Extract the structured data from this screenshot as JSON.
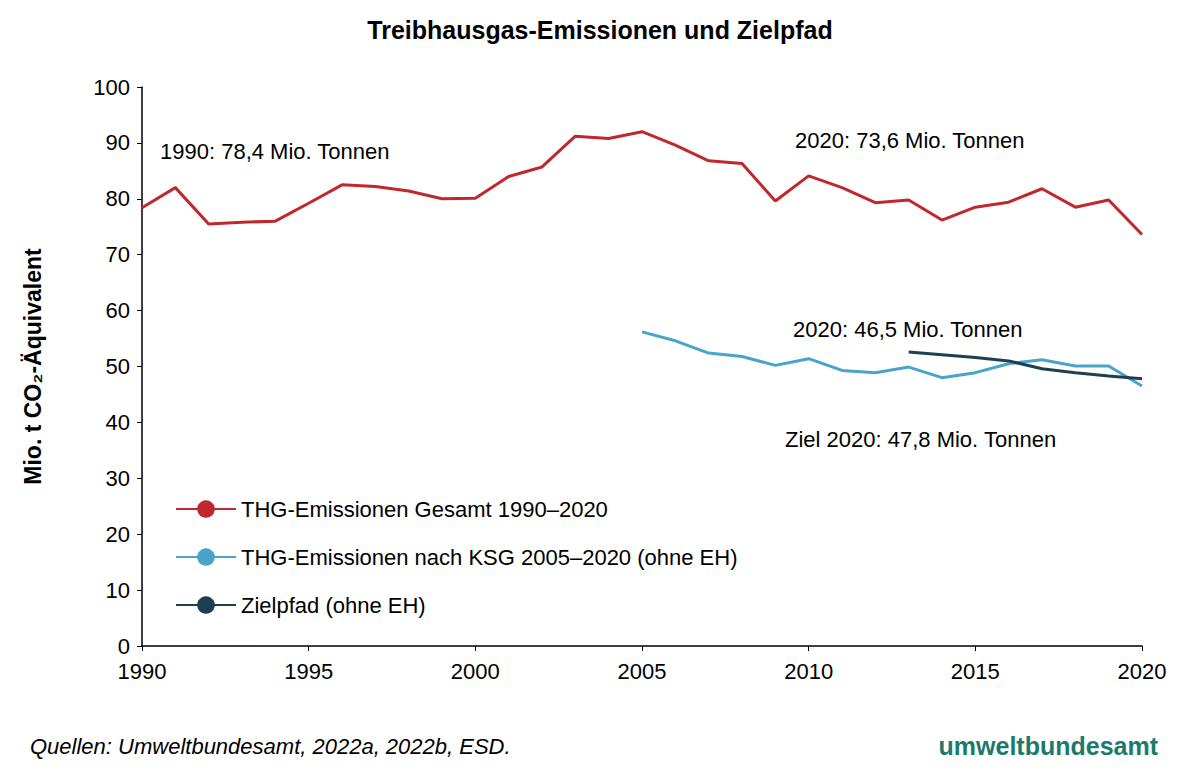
{
  "chart_data": {
    "type": "line",
    "title": "Treibhausgas-Emissionen und Zielpfad",
    "y_label": "Mio. t CO₂-Äquivalent",
    "x": [
      1990,
      1991,
      1992,
      1993,
      1994,
      1995,
      1996,
      1997,
      1998,
      1999,
      2000,
      2001,
      2002,
      2003,
      2004,
      2005,
      2006,
      2007,
      2008,
      2009,
      2010,
      2011,
      2012,
      2013,
      2014,
      2015,
      2016,
      2017,
      2018,
      2019,
      2020
    ],
    "series": [
      {
        "name": "THG-Emissionen Gesamt 1990–2020",
        "color": "#c0282d",
        "values": [
          78.4,
          82.0,
          75.5,
          75.8,
          76.0,
          79.2,
          82.5,
          82.2,
          81.4,
          80.0,
          80.1,
          84.0,
          85.7,
          91.2,
          90.8,
          92.0,
          89.6,
          86.8,
          86.3,
          79.6,
          84.1,
          82.0,
          79.3,
          79.8,
          76.2,
          78.5,
          79.4,
          81.8,
          78.5,
          79.8,
          73.6
        ]
      },
      {
        "name": "THG-Emissionen nach KSG 2005–2020 (ohne EH)",
        "color": "#4aa3c8",
        "values": [
          null,
          null,
          null,
          null,
          null,
          null,
          null,
          null,
          null,
          null,
          null,
          null,
          null,
          null,
          null,
          56.2,
          54.6,
          52.4,
          51.8,
          50.2,
          51.4,
          49.3,
          48.9,
          49.9,
          48.0,
          48.9,
          50.5,
          51.2,
          50.1,
          50.1,
          46.5
        ]
      },
      {
        "name": "Zielpfad (ohne EH)",
        "color": "#1d3f52",
        "values": [
          null,
          null,
          null,
          null,
          null,
          null,
          null,
          null,
          null,
          null,
          null,
          null,
          null,
          null,
          null,
          null,
          null,
          null,
          null,
          null,
          null,
          null,
          null,
          52.6,
          52.1,
          51.6,
          51.0,
          49.6,
          48.9,
          48.3,
          47.8
        ]
      }
    ],
    "xlim": [
      1990,
      2020
    ],
    "xticks": [
      1990,
      1995,
      2000,
      2005,
      2010,
      2015,
      2020
    ],
    "ylim": [
      0,
      100
    ],
    "yticks": [
      0,
      10,
      20,
      30,
      40,
      50,
      60,
      70,
      80,
      90,
      100
    ],
    "grid": false,
    "legend": "lower left",
    "annotations": [
      "1990: 78,4 Mio. Tonnen",
      "2020: 73,6 Mio. Tonnen",
      "2020: 46,5 Mio. Tonnen",
      "Ziel 2020: 47,8 Mio. Tonnen"
    ],
    "source": "Quellen: Umweltbundesamt, 2022a, 2022b, ESD.",
    "logo": "umweltbundesamt"
  }
}
